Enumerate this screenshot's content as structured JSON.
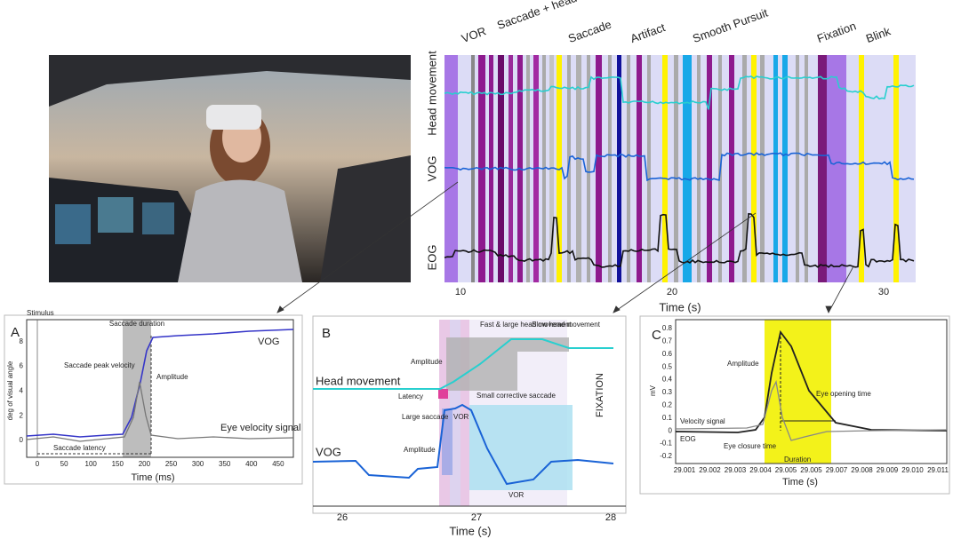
{
  "overview": {
    "category_labels": [
      "VOR",
      "Saccade + head movement",
      "Saccade",
      "Artifact",
      "Smooth Pursuit",
      "Fixation",
      "Blink"
    ],
    "signal_labels": [
      "Head movement",
      "VOG",
      "EOG"
    ],
    "xticks": [
      "10",
      "20",
      "30"
    ],
    "xlabel": "Time (s)"
  },
  "panel_a": {
    "letter": "A",
    "stimulus": "Stimulus",
    "ylabel": "deg of visual angle",
    "yticks": [
      "0",
      "2",
      "4",
      "6",
      "8"
    ],
    "xticks": [
      "0",
      "50",
      "100",
      "150",
      "200",
      "250",
      "300",
      "350",
      "400",
      "450"
    ],
    "xlabel": "Time (ms)",
    "annotations": [
      "Saccade duration",
      "Saccade peak velocity",
      "Amplitude",
      "VOG",
      "Eye velocity signal",
      "Saccade latency"
    ]
  },
  "panel_b": {
    "letter": "B",
    "xticks": [
      "26",
      "27",
      "28"
    ],
    "xlabel": "Time (s)",
    "annotations": [
      "Fast & large head movement",
      "Slow head movement",
      "Amplitude",
      "Head movement",
      "Latency",
      "Small corrective saccade",
      "Large saccade",
      "VOR",
      "FIXATION",
      "VOG",
      "Amplitude",
      "VOR"
    ]
  },
  "panel_c": {
    "letter": "C",
    "ylabel": "mV",
    "yticks": [
      "0.8",
      "0.7",
      "0.6",
      "0.5",
      "0.4",
      "0.3",
      "0.2",
      "0.1",
      "0",
      "-0.1",
      "-0.2"
    ],
    "xticks": [
      "29.001",
      "29.002",
      "29.003",
      "29.004",
      "29.005",
      "29.005",
      "29.007",
      "29.008",
      "29.009",
      "29.010",
      "29.011"
    ],
    "xlabel": "Time (s)",
    "annotations": [
      "Amplitude",
      "Eye opening time",
      "Velocity signal",
      "EOG",
      "Eye closure time",
      "Duration"
    ]
  }
}
